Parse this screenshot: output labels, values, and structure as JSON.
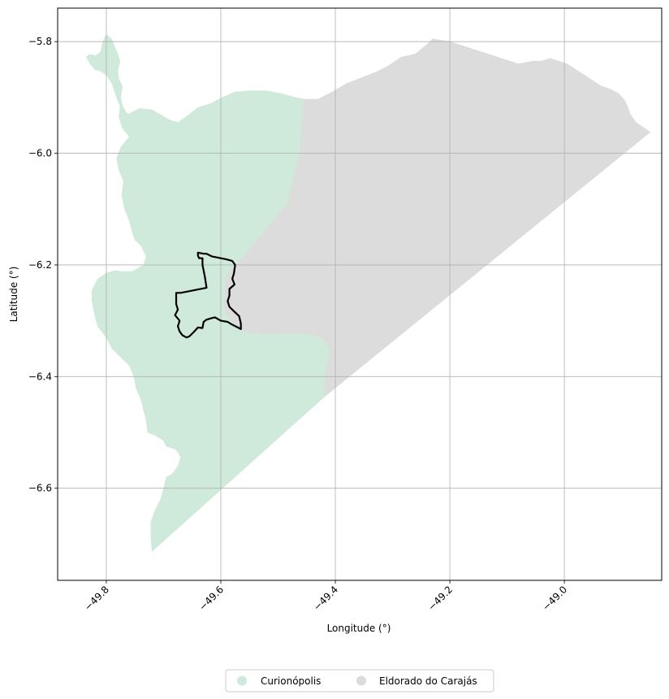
{
  "chart_data": {
    "type": "map",
    "title": "",
    "xlabel": "Longitude (°)",
    "ylabel": "Latitude (°)",
    "xlim": [
      -49.885,
      -48.83
    ],
    "ylim": [
      -6.765,
      -5.74
    ],
    "grid": true,
    "x_ticks": [
      {
        "value": -49.8,
        "label": "−49.8"
      },
      {
        "value": -49.6,
        "label": "−49.6"
      },
      {
        "value": -49.4,
        "label": "−49.4"
      },
      {
        "value": -49.2,
        "label": "−49.2"
      },
      {
        "value": -49.0,
        "label": "−49.0"
      }
    ],
    "y_ticks": [
      {
        "value": -5.8,
        "label": "−5.8"
      },
      {
        "value": -6.0,
        "label": "−6.0"
      },
      {
        "value": -6.2,
        "label": "−6.2"
      },
      {
        "value": -6.4,
        "label": "−6.4"
      },
      {
        "value": -6.6,
        "label": "−6.6"
      }
    ],
    "legend_position": "bottom-center",
    "regions": [
      {
        "name": "Curionópolis",
        "color": "#cfeadb",
        "boundary": [
          [
            -49.8,
            -5.787
          ],
          [
            -49.791,
            -5.795
          ],
          [
            -49.785,
            -5.81
          ],
          [
            -49.78,
            -5.822
          ],
          [
            -49.776,
            -5.836
          ],
          [
            -49.78,
            -5.852
          ],
          [
            -49.778,
            -5.868
          ],
          [
            -49.772,
            -5.88
          ],
          [
            -49.775,
            -5.9
          ],
          [
            -49.772,
            -5.915
          ],
          [
            -49.766,
            -5.925
          ],
          [
            -49.762,
            -5.93
          ],
          [
            -49.742,
            -5.92
          ],
          [
            -49.72,
            -5.922
          ],
          [
            -49.69,
            -5.94
          ],
          [
            -49.675,
            -5.945
          ],
          [
            -49.66,
            -5.934
          ],
          [
            -49.64,
            -5.918
          ],
          [
            -49.62,
            -5.912
          ],
          [
            -49.597,
            -5.9
          ],
          [
            -49.575,
            -5.89
          ],
          [
            -49.548,
            -5.888
          ],
          [
            -49.522,
            -5.888
          ],
          [
            -49.495,
            -5.893
          ],
          [
            -49.47,
            -5.9
          ],
          [
            -49.455,
            -5.903
          ],
          [
            -49.456,
            -5.92
          ],
          [
            -49.46,
            -5.96
          ],
          [
            -49.462,
            -6.0
          ],
          [
            -49.47,
            -6.03
          ],
          [
            -49.476,
            -6.06
          ],
          [
            -49.483,
            -6.09
          ],
          [
            -49.5,
            -6.11
          ],
          [
            -49.52,
            -6.135
          ],
          [
            -49.54,
            -6.16
          ],
          [
            -49.56,
            -6.185
          ],
          [
            -49.575,
            -6.2
          ],
          [
            -49.59,
            -6.22
          ],
          [
            -49.593,
            -6.25
          ],
          [
            -49.594,
            -6.28
          ],
          [
            -49.583,
            -6.3
          ],
          [
            -49.57,
            -6.31
          ],
          [
            -49.555,
            -6.32
          ],
          [
            -49.53,
            -6.323
          ],
          [
            -49.5,
            -6.323
          ],
          [
            -49.47,
            -6.322
          ],
          [
            -49.44,
            -6.325
          ],
          [
            -49.425,
            -6.33
          ],
          [
            -49.415,
            -6.34
          ],
          [
            -49.41,
            -6.355
          ],
          [
            -49.415,
            -6.38
          ],
          [
            -49.418,
            -6.41
          ],
          [
            -49.42,
            -6.437
          ],
          [
            -49.72,
            -6.713
          ],
          [
            -49.722,
            -6.69
          ],
          [
            -49.722,
            -6.66
          ],
          [
            -49.715,
            -6.64
          ],
          [
            -49.705,
            -6.62
          ],
          [
            -49.7,
            -6.6
          ],
          [
            -49.695,
            -6.58
          ],
          [
            -49.685,
            -6.575
          ],
          [
            -49.675,
            -6.56
          ],
          [
            -49.67,
            -6.545
          ],
          [
            -49.675,
            -6.535
          ],
          [
            -49.68,
            -6.53
          ],
          [
            -49.695,
            -6.525
          ],
          [
            -49.7,
            -6.515
          ],
          [
            -49.715,
            -6.505
          ],
          [
            -49.728,
            -6.5
          ],
          [
            -49.73,
            -6.48
          ],
          [
            -49.735,
            -6.46
          ],
          [
            -49.74,
            -6.44
          ],
          [
            -49.748,
            -6.42
          ],
          [
            -49.752,
            -6.4
          ],
          [
            -49.76,
            -6.38
          ],
          [
            -49.775,
            -6.365
          ],
          [
            -49.79,
            -6.35
          ],
          [
            -49.8,
            -6.33
          ],
          [
            -49.815,
            -6.31
          ],
          [
            -49.82,
            -6.29
          ],
          [
            -49.825,
            -6.265
          ],
          [
            -49.825,
            -6.245
          ],
          [
            -49.815,
            -6.225
          ],
          [
            -49.8,
            -6.215
          ],
          [
            -49.785,
            -6.21
          ],
          [
            -49.775,
            -6.212
          ],
          [
            -49.755,
            -6.212
          ],
          [
            -49.735,
            -6.2
          ],
          [
            -49.73,
            -6.185
          ],
          [
            -49.74,
            -6.165
          ],
          [
            -49.75,
            -6.155
          ],
          [
            -49.755,
            -6.14
          ],
          [
            -49.76,
            -6.12
          ],
          [
            -49.768,
            -6.1
          ],
          [
            -49.773,
            -6.075
          ],
          [
            -49.77,
            -6.05
          ],
          [
            -49.778,
            -6.03
          ],
          [
            -49.782,
            -6.01
          ],
          [
            -49.775,
            -5.99
          ],
          [
            -49.76,
            -5.97
          ],
          [
            -49.772,
            -5.955
          ],
          [
            -49.778,
            -5.935
          ],
          [
            -49.776,
            -5.915
          ],
          [
            -49.782,
            -5.9
          ],
          [
            -49.79,
            -5.875
          ],
          [
            -49.8,
            -5.86
          ],
          [
            -49.81,
            -5.853
          ],
          [
            -49.82,
            -5.85
          ],
          [
            -49.828,
            -5.84
          ],
          [
            -49.835,
            -5.828
          ],
          [
            -49.83,
            -5.823
          ],
          [
            -49.818,
            -5.825
          ],
          [
            -49.81,
            -5.818
          ],
          [
            -49.806,
            -5.8
          ]
        ]
      },
      {
        "name": "Eldorado do Carajás",
        "color": "#dcdcdc",
        "boundary": [
          [
            -49.455,
            -5.903
          ],
          [
            -49.43,
            -5.903
          ],
          [
            -49.405,
            -5.89
          ],
          [
            -49.38,
            -5.875
          ],
          [
            -49.355,
            -5.865
          ],
          [
            -49.33,
            -5.855
          ],
          [
            -49.31,
            -5.845
          ],
          [
            -49.285,
            -5.828
          ],
          [
            -49.26,
            -5.822
          ],
          [
            -49.24,
            -5.805
          ],
          [
            -49.23,
            -5.795
          ],
          [
            -49.2,
            -5.8
          ],
          [
            -49.17,
            -5.81
          ],
          [
            -49.14,
            -5.82
          ],
          [
            -49.11,
            -5.83
          ],
          [
            -49.08,
            -5.84
          ],
          [
            -49.055,
            -5.835
          ],
          [
            -49.04,
            -5.835
          ],
          [
            -49.025,
            -5.83
          ],
          [
            -49.01,
            -5.835
          ],
          [
            -48.995,
            -5.84
          ],
          [
            -48.98,
            -5.85
          ],
          [
            -48.965,
            -5.86
          ],
          [
            -48.95,
            -5.87
          ],
          [
            -48.935,
            -5.88
          ],
          [
            -48.92,
            -5.885
          ],
          [
            -48.905,
            -5.893
          ],
          [
            -48.895,
            -5.905
          ],
          [
            -48.89,
            -5.915
          ],
          [
            -48.885,
            -5.93
          ],
          [
            -48.875,
            -5.945
          ],
          [
            -48.86,
            -5.955
          ],
          [
            -48.85,
            -5.962
          ],
          [
            -49.42,
            -6.437
          ],
          [
            -49.418,
            -6.41
          ],
          [
            -49.415,
            -6.38
          ],
          [
            -49.41,
            -6.355
          ],
          [
            -49.415,
            -6.34
          ],
          [
            -49.425,
            -6.33
          ],
          [
            -49.44,
            -6.325
          ],
          [
            -49.47,
            -6.322
          ],
          [
            -49.5,
            -6.323
          ],
          [
            -49.53,
            -6.323
          ],
          [
            -49.555,
            -6.32
          ],
          [
            -49.57,
            -6.31
          ],
          [
            -49.583,
            -6.3
          ],
          [
            -49.594,
            -6.28
          ],
          [
            -49.593,
            -6.25
          ],
          [
            -49.59,
            -6.22
          ],
          [
            -49.575,
            -6.2
          ],
          [
            -49.56,
            -6.185
          ],
          [
            -49.54,
            -6.16
          ],
          [
            -49.52,
            -6.135
          ],
          [
            -49.5,
            -6.11
          ],
          [
            -49.483,
            -6.09
          ],
          [
            -49.476,
            -6.06
          ],
          [
            -49.47,
            -6.03
          ],
          [
            -49.462,
            -6.0
          ],
          [
            -49.46,
            -5.96
          ],
          [
            -49.456,
            -5.92
          ]
        ]
      }
    ],
    "highlight_outline": {
      "color": "#000000",
      "boundary": [
        [
          -49.64,
          -6.178
        ],
        [
          -49.63,
          -6.18
        ],
        [
          -49.625,
          -6.18
        ],
        [
          -49.615,
          -6.185
        ],
        [
          -49.6,
          -6.188
        ],
        [
          -49.59,
          -6.19
        ],
        [
          -49.58,
          -6.193
        ],
        [
          -49.575,
          -6.2
        ],
        [
          -49.577,
          -6.215
        ],
        [
          -49.58,
          -6.225
        ],
        [
          -49.576,
          -6.235
        ],
        [
          -49.585,
          -6.243
        ],
        [
          -49.585,
          -6.255
        ],
        [
          -49.588,
          -6.265
        ],
        [
          -49.585,
          -6.275
        ],
        [
          -49.577,
          -6.283
        ],
        [
          -49.568,
          -6.292
        ],
        [
          -49.565,
          -6.305
        ],
        [
          -49.565,
          -6.315
        ],
        [
          -49.582,
          -6.306
        ],
        [
          -49.588,
          -6.302
        ],
        [
          -49.6,
          -6.3
        ],
        [
          -49.61,
          -6.294
        ],
        [
          -49.615,
          -6.295
        ],
        [
          -49.625,
          -6.298
        ],
        [
          -49.63,
          -6.302
        ],
        [
          -49.632,
          -6.313
        ],
        [
          -49.64,
          -6.312
        ],
        [
          -49.647,
          -6.32
        ],
        [
          -49.655,
          -6.328
        ],
        [
          -49.66,
          -6.33
        ],
        [
          -49.667,
          -6.326
        ],
        [
          -49.672,
          -6.319
        ],
        [
          -49.675,
          -6.31
        ],
        [
          -49.672,
          -6.3
        ],
        [
          -49.68,
          -6.29
        ],
        [
          -49.675,
          -6.28
        ],
        [
          -49.678,
          -6.27
        ],
        [
          -49.678,
          -6.25
        ],
        [
          -49.67,
          -6.25
        ],
        [
          -49.66,
          -6.248
        ],
        [
          -49.645,
          -6.245
        ],
        [
          -49.625,
          -6.241
        ],
        [
          -49.628,
          -6.22
        ],
        [
          -49.632,
          -6.2
        ],
        [
          -49.632,
          -6.188
        ],
        [
          -49.638,
          -6.188
        ],
        [
          -49.64,
          -6.183
        ]
      ]
    }
  }
}
